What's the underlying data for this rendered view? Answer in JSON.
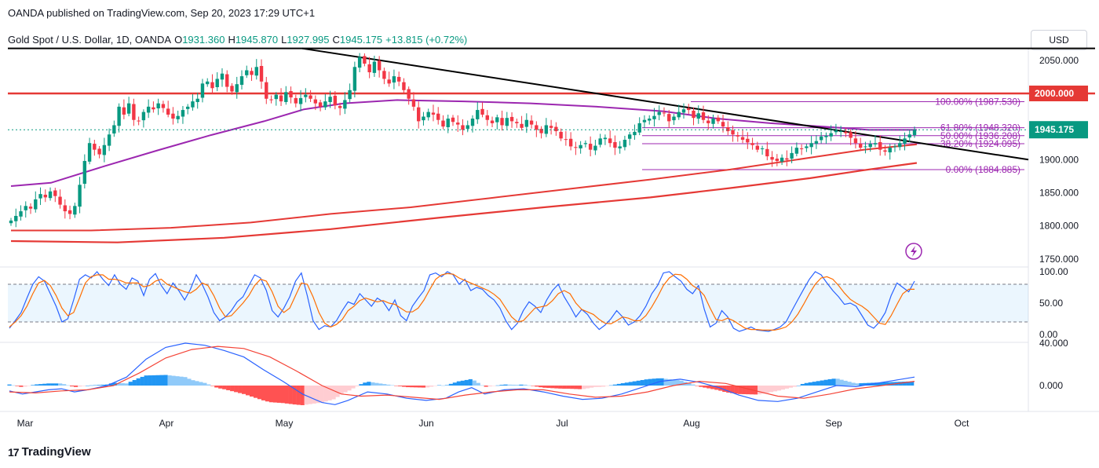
{
  "header": {
    "publisher": "OANDA published on TradingView.com, Sep 20, 2023 17:29 UTC+1"
  },
  "legend": {
    "symbol": "Gold Spot / U.S. Dollar, 1D, OANDA",
    "open_label": "O",
    "open": "1931.360",
    "high_label": "H",
    "high": "1945.870",
    "low_label": "L",
    "low": "1927.995",
    "close_label": "C",
    "close": "1945.175",
    "change": "+13.815 (+0.72%)"
  },
  "currency_button": "USD",
  "brand": "TradingView",
  "colors": {
    "up": "#089981",
    "down": "#f23645",
    "ma_red": "#e53935",
    "ma_purple": "#9c27b0",
    "fib": "#9c27b0",
    "trendline": "#000000"
  },
  "chart_data": {
    "type": "candlestick",
    "price_axis": {
      "ticks": [
        "2050.000",
        "2000.000",
        "1950.000",
        "1900.000",
        "1850.000",
        "1800.000",
        "1750.000"
      ],
      "range": [
        1730,
        2090
      ]
    },
    "time_axis": {
      "labels": [
        "Mar",
        "Apr",
        "May",
        "Jun",
        "Jul",
        "Aug",
        "Sep",
        "Oct"
      ]
    },
    "last_price_label": "1945.175",
    "level_label": "2000.000",
    "horizontal_lines": [
      2068,
      2000
    ],
    "fibonacci": [
      {
        "label": "100.00% (1987.530)",
        "value": 1987.53
      },
      {
        "label": "61.80% (1948.320)",
        "value": 1948.32
      },
      {
        "label": "50.00% (1936.208)",
        "value": 1936.208
      },
      {
        "label": "38.20% (1924.095)",
        "value": 1924.095
      },
      {
        "label": "0.00% (1884.885)",
        "value": 1884.885
      }
    ],
    "closes": [
      1808,
      1815,
      1822,
      1830,
      1826,
      1840,
      1848,
      1843,
      1852,
      1845,
      1832,
      1822,
      1818,
      1830,
      1862,
      1898,
      1925,
      1915,
      1908,
      1922,
      1938,
      1952,
      1980,
      1968,
      1985,
      1960,
      1958,
      1972,
      1980,
      1976,
      1985,
      1978,
      1968,
      1962,
      1966,
      1975,
      1980,
      1988,
      1992,
      2015,
      2018,
      2008,
      2022,
      2030,
      2010,
      2003,
      2014,
      2026,
      2035,
      2028,
      2040,
      2018,
      1992,
      1990,
      1998,
      1988,
      2002,
      1994,
      1985,
      1993,
      1998,
      1992,
      1985,
      1980,
      1988,
      1995,
      1982,
      1978,
      1990,
      2005,
      2040,
      2055,
      2045,
      2032,
      2048,
      2035,
      2022,
      2015,
      2026,
      2018,
      2005,
      1992,
      1980,
      1958,
      1965,
      1972,
      1968,
      1960,
      1950,
      1962,
      1957,
      1953,
      1945,
      1952,
      1962,
      1975,
      1968,
      1960,
      1955,
      1964,
      1952,
      1963,
      1958,
      1955,
      1948,
      1960,
      1953,
      1945,
      1940,
      1952,
      1948,
      1943,
      1932,
      1930,
      1920,
      1918,
      1922,
      1925,
      1915,
      1921,
      1932,
      1933,
      1925,
      1918,
      1920,
      1930,
      1938,
      1942,
      1955,
      1960,
      1962,
      1966,
      1972,
      1970,
      1958,
      1965,
      1972,
      1976,
      1975,
      1963,
      1970,
      1960,
      1955,
      1962,
      1958,
      1950,
      1943,
      1938,
      1935,
      1930,
      1926,
      1922,
      1915,
      1917,
      1905,
      1900,
      1898,
      1903,
      1900,
      1910,
      1918,
      1916,
      1920,
      1925,
      1928,
      1935,
      1936,
      1940,
      1944,
      1943,
      1940,
      1933,
      1925,
      1918,
      1920,
      1924,
      1925,
      1915,
      1912,
      1918,
      1920,
      1925,
      1932,
      1938,
      1945
    ],
    "ma_purple": [
      [
        0,
        1860
      ],
      [
        15,
        1865
      ],
      [
        35,
        1890
      ],
      [
        55,
        1914
      ],
      [
        75,
        1937
      ],
      [
        95,
        1958
      ],
      [
        110,
        1976
      ],
      [
        125,
        1985
      ],
      [
        145,
        1990
      ],
      [
        170,
        1988
      ],
      [
        195,
        1985
      ],
      [
        220,
        1980
      ],
      [
        245,
        1973
      ],
      [
        265,
        1962
      ],
      [
        285,
        1955
      ],
      [
        305,
        1950
      ],
      [
        322,
        1945
      ],
      [
        340,
        1945
      ]
    ],
    "ma_red_200": [
      [
        0,
        1793
      ],
      [
        30,
        1793
      ],
      [
        60,
        1797
      ],
      [
        90,
        1805
      ],
      [
        120,
        1818
      ],
      [
        150,
        1828
      ],
      [
        180,
        1842
      ],
      [
        210,
        1856
      ],
      [
        240,
        1870
      ],
      [
        270,
        1885
      ],
      [
        300,
        1903
      ],
      [
        320,
        1915
      ],
      [
        340,
        1923
      ]
    ],
    "ma_red_long": [
      [
        0,
        1777
      ],
      [
        40,
        1775
      ],
      [
        80,
        1782
      ],
      [
        120,
        1795
      ],
      [
        160,
        1812
      ],
      [
        200,
        1828
      ],
      [
        240,
        1843
      ],
      [
        270,
        1857
      ],
      [
        300,
        1872
      ],
      [
        320,
        1884
      ],
      [
        340,
        1895
      ]
    ],
    "trendline": {
      "start_value": 2068,
      "end_value": 1900
    },
    "stochastic": {
      "ticks": [
        "100.00",
        "50.00",
        "0.00"
      ],
      "bands": [
        80,
        20
      ],
      "k": [
        10,
        22,
        35,
        58,
        80,
        92,
        85,
        65,
        45,
        20,
        25,
        55,
        88,
        95,
        90,
        100,
        88,
        78,
        95,
        80,
        72,
        90,
        85,
        62,
        88,
        97,
        78,
        65,
        82,
        70,
        55,
        72,
        95,
        80,
        60,
        35,
        22,
        28,
        38,
        52,
        60,
        78,
        95,
        90,
        70,
        38,
        28,
        42,
        60,
        85,
        98,
        62,
        22,
        8,
        14,
        12,
        22,
        38,
        52,
        48,
        65,
        55,
        45,
        58,
        52,
        38,
        55,
        30,
        22,
        45,
        58,
        70,
        95,
        98,
        92,
        100,
        95,
        80,
        88,
        70,
        75,
        72,
        62,
        55,
        42,
        22,
        8,
        18,
        38,
        52,
        45,
        35,
        55,
        70,
        80,
        60,
        45,
        28,
        40,
        32,
        18,
        8,
        15,
        25,
        38,
        28,
        15,
        20,
        30,
        45,
        65,
        78,
        98,
        100,
        92,
        85,
        72,
        65,
        78,
        40,
        12,
        18,
        38,
        28,
        10,
        5,
        8,
        12,
        7,
        6,
        5,
        8,
        12,
        20,
        38,
        55,
        72,
        88,
        100,
        95,
        82,
        70,
        60,
        48,
        50,
        45,
        30,
        15,
        10,
        20,
        35,
        62,
        82,
        75,
        68,
        85
      ],
      "d": [
        12,
        20,
        30,
        45,
        65,
        82,
        86,
        78,
        62,
        42,
        30,
        35,
        58,
        82,
        92,
        95,
        95,
        88,
        88,
        86,
        82,
        82,
        82,
        76,
        78,
        85,
        88,
        80,
        76,
        72,
        68,
        66,
        72,
        82,
        78,
        62,
        42,
        28,
        30,
        40,
        50,
        62,
        78,
        88,
        85,
        68,
        45,
        35,
        42,
        62,
        82,
        80,
        60,
        35,
        18,
        12,
        16,
        24,
        38,
        45,
        54,
        58,
        55,
        52,
        54,
        50,
        48,
        42,
        36,
        36,
        42,
        55,
        72,
        88,
        95,
        97,
        96,
        90,
        86,
        82,
        78,
        74,
        70,
        64,
        56,
        42,
        28,
        20,
        22,
        32,
        42,
        44,
        46,
        54,
        65,
        70,
        65,
        50,
        40,
        36,
        32,
        24,
        18,
        17,
        22,
        28,
        26,
        22,
        22,
        30,
        44,
        60,
        78,
        90,
        96,
        95,
        88,
        78,
        72,
        62,
        42,
        24,
        22,
        26,
        22,
        16,
        10,
        8,
        8,
        7,
        7,
        7,
        9,
        12,
        20,
        32,
        48,
        65,
        80,
        90,
        92,
        88,
        78,
        66,
        56,
        50,
        45,
        38,
        28,
        18,
        16,
        30,
        48,
        65,
        72,
        72
      ]
    },
    "macd": {
      "ticks": [
        "40.000",
        "0.000"
      ],
      "range": [
        -25,
        48
      ],
      "macd_line": [
        [
          0,
          -5
        ],
        [
          10,
          -8
        ],
        [
          20,
          -6
        ],
        [
          30,
          -4
        ],
        [
          40,
          -3
        ],
        [
          50,
          -6
        ],
        [
          60,
          -4
        ],
        [
          75,
          0
        ],
        [
          90,
          8
        ],
        [
          105,
          25
        ],
        [
          120,
          36
        ],
        [
          135,
          40
        ],
        [
          150,
          38
        ],
        [
          165,
          33
        ],
        [
          180,
          27
        ],
        [
          195,
          15
        ],
        [
          210,
          4
        ],
        [
          225,
          -8
        ],
        [
          240,
          -16
        ],
        [
          250,
          -18
        ],
        [
          260,
          -14
        ],
        [
          275,
          -6
        ],
        [
          290,
          -8
        ],
        [
          305,
          -12
        ],
        [
          320,
          -14
        ],
        [
          335,
          -12
        ],
        [
          345,
          -6
        ],
        [
          355,
          -2
        ],
        [
          365,
          -8
        ],
        [
          380,
          -4
        ],
        [
          395,
          -3
        ],
        [
          410,
          -6
        ],
        [
          425,
          -10
        ],
        [
          440,
          -13
        ],
        [
          455,
          -12
        ],
        [
          470,
          -8
        ],
        [
          485,
          -2
        ],
        [
          500,
          4
        ],
        [
          515,
          6
        ],
        [
          530,
          3
        ],
        [
          545,
          -2
        ],
        [
          560,
          -9
        ],
        [
          575,
          -14
        ],
        [
          590,
          -15
        ],
        [
          605,
          -12
        ],
        [
          620,
          -6
        ],
        [
          635,
          0
        ],
        [
          650,
          -1
        ],
        [
          665,
          2
        ],
        [
          680,
          5
        ],
        [
          695,
          8
        ]
      ],
      "signal_line": [
        [
          0,
          -6
        ],
        [
          20,
          -7
        ],
        [
          40,
          -5
        ],
        [
          60,
          -4
        ],
        [
          80,
          0
        ],
        [
          100,
          12
        ],
        [
          120,
          26
        ],
        [
          140,
          34
        ],
        [
          160,
          37
        ],
        [
          180,
          35
        ],
        [
          200,
          27
        ],
        [
          220,
          14
        ],
        [
          240,
          0
        ],
        [
          255,
          -8
        ],
        [
          270,
          -10
        ],
        [
          290,
          -9
        ],
        [
          310,
          -11
        ],
        [
          330,
          -13
        ],
        [
          350,
          -9
        ],
        [
          370,
          -6
        ],
        [
          390,
          -4
        ],
        [
          410,
          -4
        ],
        [
          430,
          -8
        ],
        [
          450,
          -11
        ],
        [
          470,
          -10
        ],
        [
          490,
          -6
        ],
        [
          510,
          0
        ],
        [
          530,
          4
        ],
        [
          550,
          2
        ],
        [
          570,
          -4
        ],
        [
          590,
          -10
        ],
        [
          610,
          -12
        ],
        [
          630,
          -8
        ],
        [
          650,
          -3
        ],
        [
          670,
          0
        ],
        [
          695,
          4
        ]
      ],
      "histogram_source": "macd_line_minus_signal_line"
    }
  }
}
